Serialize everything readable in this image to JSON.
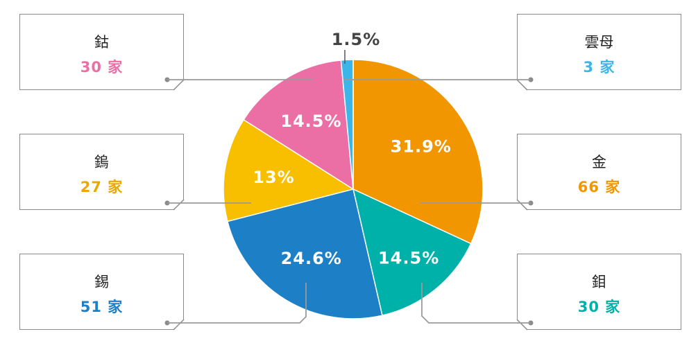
{
  "chart_data": {
    "type": "pie",
    "colors": {
      "金": "#F29600",
      "鉬": "#00B1A9",
      "錫": "#1D7FC5",
      "鎢": "#F8BE00",
      "鈷": "#EB6FA5",
      "雲母": "#3CB6E9"
    },
    "slices": [
      {
        "name": "金",
        "percent": 31.9,
        "label": "31.9%",
        "count": "66 家",
        "color": "#F29600"
      },
      {
        "name": "鉬",
        "percent": 14.5,
        "label": "14.5%",
        "count": "30 家",
        "color": "#00B1A9"
      },
      {
        "name": "錫",
        "percent": 24.6,
        "label": "24.6%",
        "count": "51 家",
        "color": "#1D7FC5"
      },
      {
        "name": "鎢",
        "percent": 13,
        "label": "13%",
        "count": "27 家",
        "color": "#F8BE00"
      },
      {
        "name": "鈷",
        "percent": 14.5,
        "label": "14.5%",
        "count": "30 家",
        "color": "#EB6FA5"
      },
      {
        "name": "雲母",
        "percent": 1.5,
        "label": "1.5%",
        "count": "3 家",
        "color": "#3CB6E9"
      }
    ]
  }
}
